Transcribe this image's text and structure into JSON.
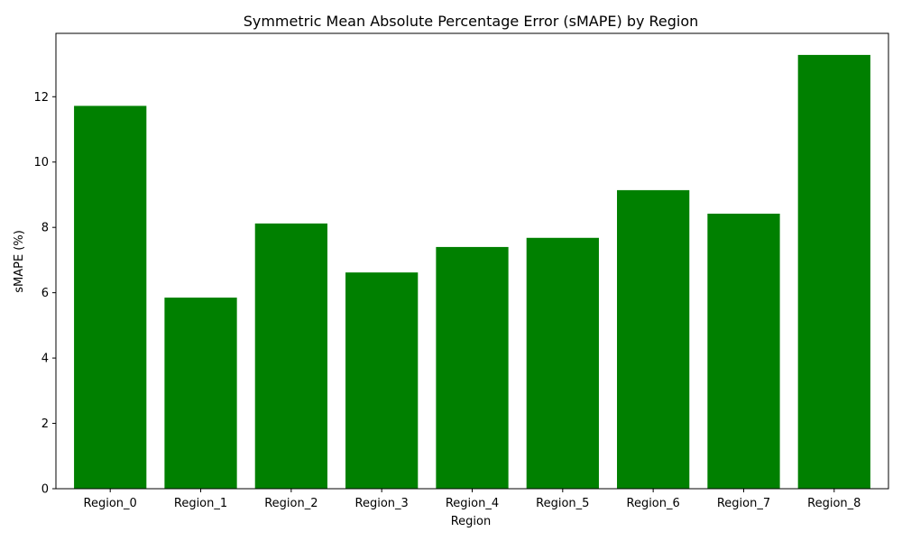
{
  "chart_data": {
    "type": "bar",
    "title": "Symmetric Mean Absolute Percentage Error (sMAPE) by Region",
    "xlabel": "Region",
    "ylabel": "sMAPE (%)",
    "categories": [
      "Region_0",
      "Region_1",
      "Region_2",
      "Region_3",
      "Region_4",
      "Region_5",
      "Region_6",
      "Region_7",
      "Region_8"
    ],
    "values": [
      11.72,
      5.85,
      8.12,
      6.62,
      7.4,
      7.68,
      9.14,
      8.42,
      13.28
    ],
    "ylim": [
      0,
      13.94
    ],
    "yticks": [
      0,
      2,
      4,
      6,
      8,
      10,
      12
    ],
    "bar_color": "#008000",
    "grid": false,
    "legend": "none"
  }
}
